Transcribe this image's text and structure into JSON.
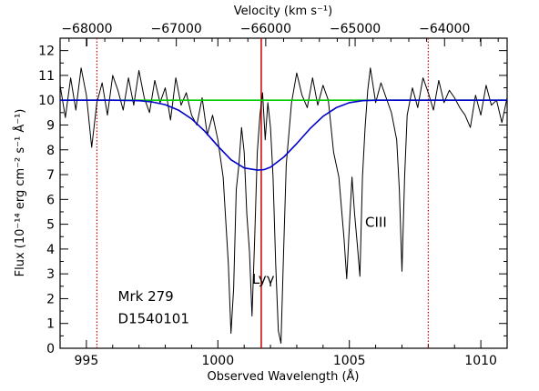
{
  "chart_data": {
    "type": "line",
    "xlabel": "Observed Wavelength (Å)",
    "ylabel": "Flux (10⁻¹⁴ erg cm⁻² s⁻¹ Å⁻¹)",
    "x2label": "Velocity (km s⁻¹)",
    "xlim": [
      994,
      1011
    ],
    "ylim": [
      0,
      12.5
    ],
    "x2lim": [
      -68300,
      -63300
    ],
    "xticks": [
      995,
      1000,
      1005,
      1010
    ],
    "yticks": [
      0,
      1,
      2,
      3,
      4,
      5,
      6,
      7,
      8,
      9,
      10,
      11,
      12
    ],
    "x2ticks": [
      -68000,
      -67000,
      -66000,
      -65000,
      -64000
    ],
    "annotations": [
      {
        "text": "Lyγ",
        "x": 1001.3,
        "y": 2.6
      },
      {
        "text": "CIII",
        "x": 1005.6,
        "y": 4.9
      },
      {
        "text": "Mrk 279",
        "x": 996.2,
        "y": 1.9
      },
      {
        "text": "D1540101",
        "x": 996.2,
        "y": 1.0
      }
    ],
    "vertical_lines": [
      {
        "x": 995.4,
        "color": "#cc0000",
        "style": "dotted"
      },
      {
        "x": 1001.65,
        "color": "#cc0000",
        "style": "solid"
      },
      {
        "x": 1008.0,
        "color": "#cc0000",
        "style": "dotted"
      }
    ],
    "series": [
      {
        "color": "#000000",
        "x": [
          994.0,
          994.2,
          994.4,
          994.6,
          994.8,
          995.0,
          995.2,
          995.4,
          995.6,
          995.8,
          996.0,
          996.2,
          996.4,
          996.6,
          996.8,
          997.0,
          997.2,
          997.4,
          997.6,
          997.8,
          998.0,
          998.2,
          998.4,
          998.6,
          998.8,
          999.0,
          999.2,
          999.4,
          999.6,
          999.8,
          1000.0,
          1000.2,
          1000.4,
          1000.5,
          1000.6,
          1000.7,
          1000.8,
          1000.9,
          1001.0,
          1001.1,
          1001.2,
          1001.3,
          1001.4,
          1001.5,
          1001.6,
          1001.7,
          1001.8,
          1001.9,
          1002.0,
          1002.1,
          1002.2,
          1002.3,
          1002.4,
          1002.5,
          1002.6,
          1002.8,
          1003.0,
          1003.2,
          1003.4,
          1003.6,
          1003.8,
          1004.0,
          1004.2,
          1004.4,
          1004.6,
          1004.8,
          1004.9,
          1005.0,
          1005.1,
          1005.2,
          1005.3,
          1005.4,
          1005.5,
          1005.6,
          1005.7,
          1005.8,
          1006.0,
          1006.2,
          1006.4,
          1006.6,
          1006.8,
          1006.9,
          1007.0,
          1007.1,
          1007.2,
          1007.4,
          1007.6,
          1007.8,
          1008.0,
          1008.2,
          1008.4,
          1008.6,
          1008.8,
          1009.0,
          1009.2,
          1009.4,
          1009.6,
          1009.8,
          1010.0,
          1010.2,
          1010.4,
          1010.6,
          1010.8,
          1011.0
        ],
        "y": [
          10.6,
          9.3,
          10.9,
          9.6,
          11.3,
          10.2,
          8.1,
          9.9,
          10.7,
          9.4,
          11.0,
          10.4,
          9.6,
          10.9,
          9.8,
          11.2,
          10.1,
          9.5,
          10.8,
          9.9,
          10.5,
          9.2,
          10.9,
          9.8,
          10.3,
          9.4,
          9.0,
          10.1,
          8.6,
          9.4,
          8.4,
          6.9,
          3.4,
          0.6,
          2.4,
          6.4,
          7.4,
          8.9,
          7.9,
          5.4,
          3.9,
          1.3,
          4.4,
          7.9,
          9.4,
          10.3,
          8.4,
          9.9,
          8.9,
          6.9,
          3.4,
          0.7,
          0.2,
          3.9,
          7.4,
          9.9,
          11.1,
          10.2,
          9.7,
          10.9,
          9.8,
          10.6,
          10.0,
          7.9,
          6.9,
          4.4,
          2.8,
          4.9,
          6.9,
          5.4,
          4.2,
          2.9,
          6.9,
          8.9,
          10.4,
          11.3,
          9.9,
          10.7,
          10.1,
          9.5,
          8.4,
          6.4,
          3.1,
          6.9,
          9.4,
          10.5,
          9.7,
          10.9,
          10.3,
          9.6,
          10.8,
          9.9,
          10.4,
          10.1,
          9.7,
          9.4,
          8.9,
          10.2,
          9.4,
          10.6,
          9.8,
          10.0,
          9.1,
          10.1
        ]
      },
      {
        "color": "#00cc00",
        "x": [
          994.0,
          1011.0
        ],
        "y": [
          10.0,
          10.0
        ]
      },
      {
        "color": "#0000cc",
        "x": [
          994.0,
          996.0,
          997.0,
          997.5,
          998.0,
          998.5,
          999.0,
          999.5,
          1000.0,
          1000.5,
          1001.0,
          1001.5,
          1001.75,
          1002.0,
          1002.5,
          1003.0,
          1003.5,
          1004.0,
          1004.5,
          1005.0,
          1005.5,
          1006.0,
          1007.0,
          1008.0,
          1011.0
        ],
        "y": [
          10.0,
          10.0,
          9.98,
          9.93,
          9.82,
          9.6,
          9.25,
          8.75,
          8.15,
          7.6,
          7.27,
          7.18,
          7.2,
          7.3,
          7.7,
          8.25,
          8.85,
          9.35,
          9.7,
          9.9,
          9.98,
          10.0,
          10.0,
          10.0,
          10.0
        ]
      }
    ]
  }
}
